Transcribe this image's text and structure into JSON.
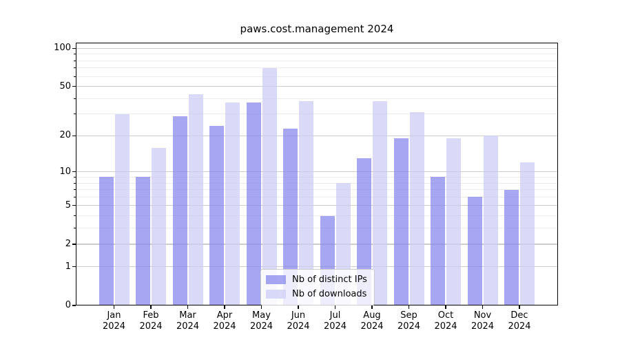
{
  "chart_data": {
    "type": "bar",
    "title": "paws.cost.management 2024",
    "categories": [
      "Jan 2024",
      "Feb 2024",
      "Mar 2024",
      "Apr 2024",
      "May 2024",
      "Jun 2024",
      "Jul 2024",
      "Aug 2024",
      "Sep 2024",
      "Oct 2024",
      "Nov 2024",
      "Dec 2024"
    ],
    "series": [
      {
        "name": "Nb of distinct IPs",
        "color": "#8888ee",
        "values": [
          9,
          9,
          29,
          24,
          37,
          23,
          4,
          13,
          19,
          9,
          6,
          7
        ]
      },
      {
        "name": "Nb of downloads",
        "color": "#cdcdf6",
        "values": [
          30,
          16,
          43,
          37,
          70,
          38,
          8,
          38,
          31,
          19,
          20,
          12
        ]
      }
    ],
    "yscale": "log1p",
    "ytick_labels": [
      "0",
      "1",
      "2",
      "5",
      "10",
      "20",
      "50",
      "100"
    ],
    "ytick_values": [
      0,
      1,
      2,
      5,
      10,
      20,
      50,
      100
    ],
    "yminor_values": [
      3,
      4,
      6,
      7,
      8,
      9,
      30,
      40,
      60,
      70,
      80,
      90
    ],
    "ylim": [
      0,
      111
    ],
    "xlabel": "",
    "ylabel": "",
    "grid": true,
    "legend_position": "lower center",
    "colors": {
      "major_grid": "#cccccc",
      "minor_grid": "#ececec",
      "axis": "#000000"
    }
  }
}
